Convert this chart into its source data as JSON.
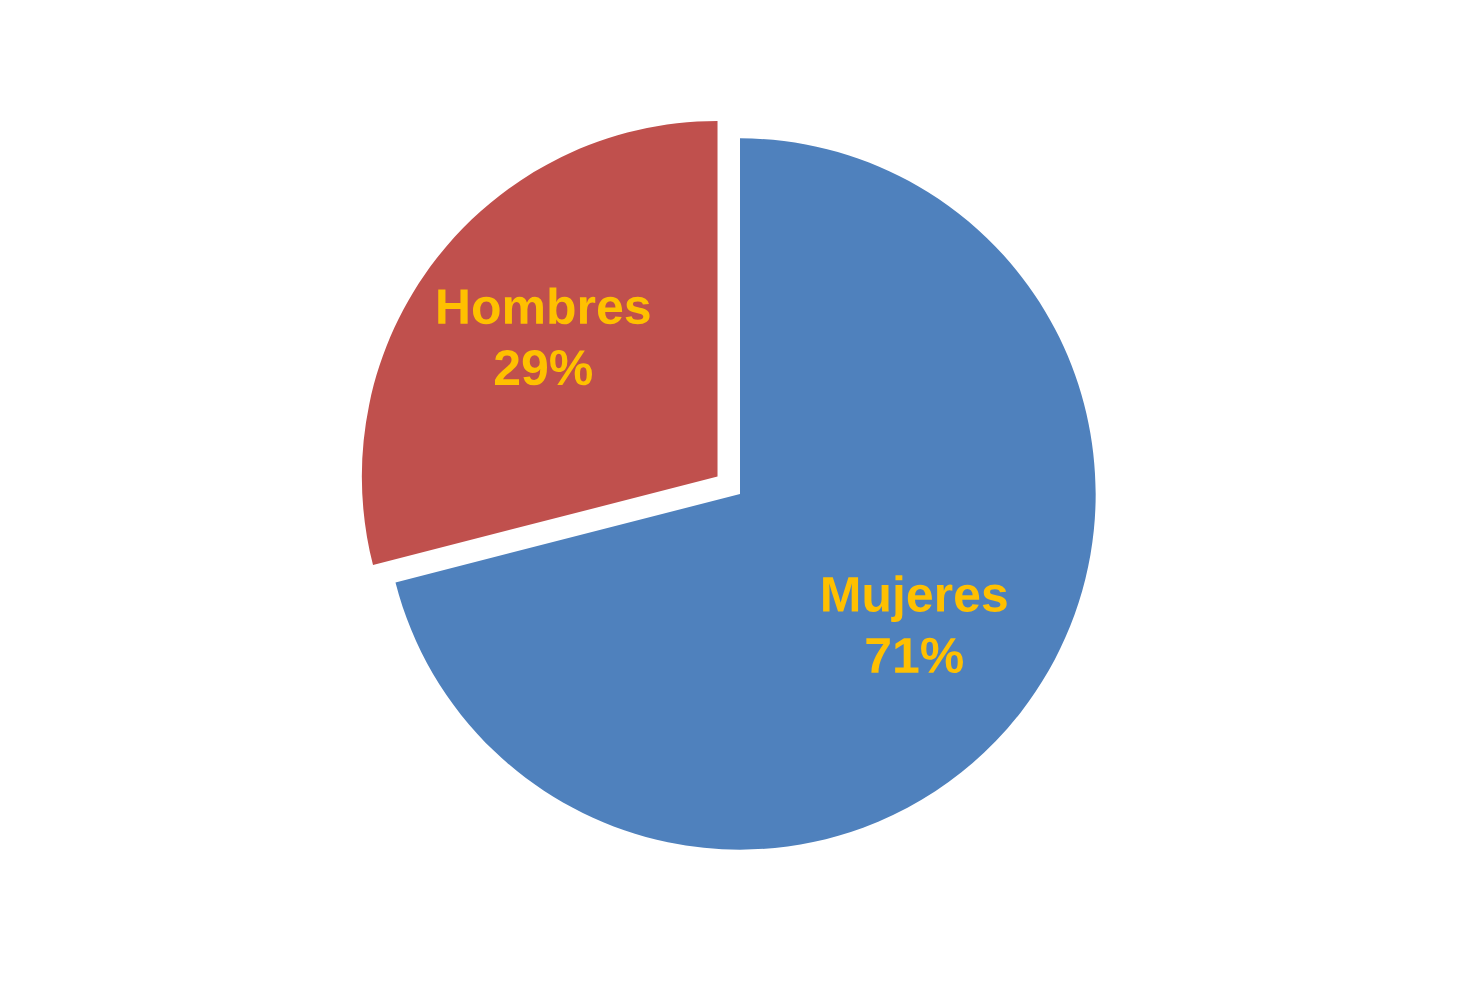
{
  "chart_data": {
    "type": "pie",
    "categories": [
      "Hombres",
      "Mujeres"
    ],
    "values": [
      29,
      71
    ],
    "colors": [
      "#c0504d",
      "#4f81bd"
    ],
    "value_labels": [
      "29%",
      "71%"
    ]
  }
}
